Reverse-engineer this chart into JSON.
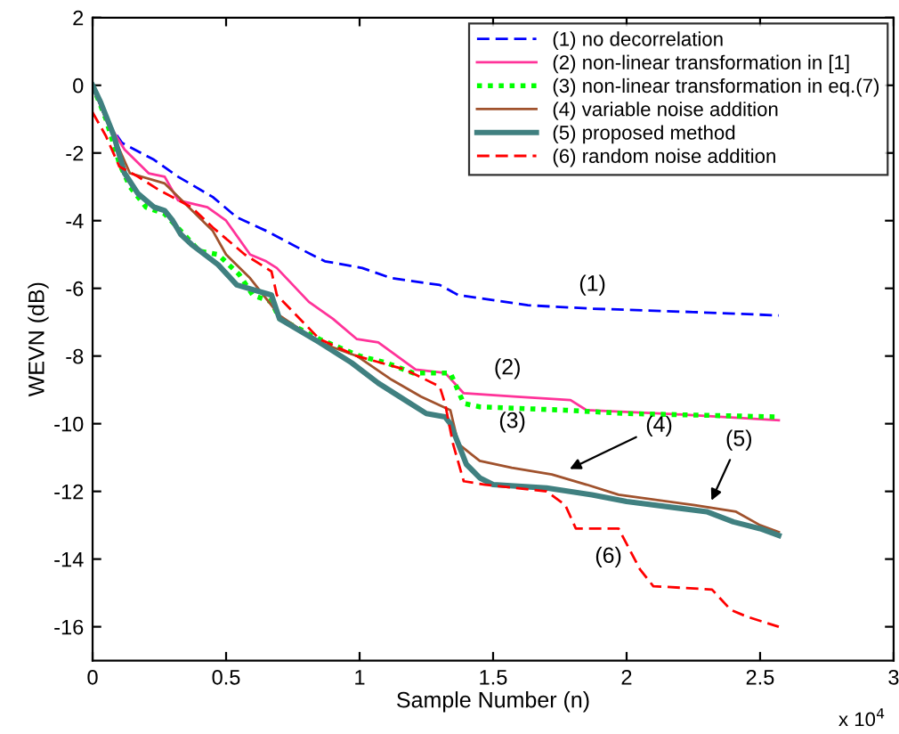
{
  "chart_data": {
    "type": "line",
    "xlabel": "Sample Number (n)",
    "ylabel": "WEVN (dB)",
    "xlim": [
      0,
      3
    ],
    "xticks": [
      0,
      0.5,
      1,
      1.5,
      2,
      2.5,
      3
    ],
    "ylim": [
      -17,
      2
    ],
    "yticks": [
      -16,
      -14,
      -12,
      -10,
      -8,
      -6,
      -4,
      -2,
      0,
      2
    ],
    "grid": false,
    "legend": "top right",
    "marker": "none",
    "series": [
      {
        "name": "(1) no decorrelation",
        "color": "#0000ff",
        "line_style": "dashed",
        "x": [
          0,
          0.05,
          0.11,
          0.23,
          0.32,
          0.45,
          0.54,
          0.65,
          0.77,
          0.87,
          1.01,
          1.12,
          1.3,
          1.37,
          1.63,
          1.87,
          2.25,
          2.57
        ],
        "values": [
          0,
          -1.0,
          -1.7,
          -2.2,
          -2.7,
          -3.3,
          -3.9,
          -4.3,
          -4.8,
          -5.2,
          -5.4,
          -5.7,
          -5.9,
          -6.2,
          -6.5,
          -6.6,
          -6.7,
          -6.8
        ]
      },
      {
        "name": "(2) non-linear transformation in [1]",
        "color": "#ff3399",
        "line_style": "solid",
        "x": [
          0,
          0.05,
          0.12,
          0.21,
          0.27,
          0.32,
          0.43,
          0.5,
          0.59,
          0.65,
          0.69,
          0.81,
          0.9,
          0.99,
          1.07,
          1.21,
          1.32,
          1.39,
          1.59,
          1.79,
          1.85,
          2.14,
          2.57
        ],
        "values": [
          0,
          -1.0,
          -1.9,
          -2.6,
          -2.7,
          -3.4,
          -3.6,
          -4.0,
          -5.0,
          -5.2,
          -5.4,
          -6.4,
          -6.9,
          -7.5,
          -7.6,
          -8.4,
          -8.5,
          -9.1,
          -9.2,
          -9.3,
          -9.6,
          -9.7,
          -9.9
        ]
      },
      {
        "name": "(3) non-linear transformation in eq.(7)",
        "color": "#00ff00",
        "line_style": "dotted",
        "x": [
          0,
          0.05,
          0.1,
          0.14,
          0.2,
          0.27,
          0.33,
          0.4,
          0.47,
          0.55,
          0.6,
          0.67,
          0.7,
          0.85,
          1.0,
          1.1,
          1.2,
          1.34,
          1.39,
          1.45,
          1.77,
          2.0,
          2.57
        ],
        "values": [
          0,
          -1.0,
          -2.3,
          -3.0,
          -3.6,
          -3.8,
          -4.3,
          -4.9,
          -5.0,
          -5.6,
          -6.2,
          -6.4,
          -6.9,
          -7.5,
          -8.0,
          -8.2,
          -8.5,
          -8.5,
          -9.4,
          -9.5,
          -9.6,
          -9.7,
          -9.8
        ]
      },
      {
        "name": "(4) variable noise addition",
        "color": "#a0522d",
        "line_style": "solid",
        "x": [
          0,
          0.05,
          0.14,
          0.27,
          0.45,
          0.5,
          0.59,
          0.7,
          0.85,
          0.99,
          1.12,
          1.23,
          1.34,
          1.37,
          1.45,
          1.57,
          1.72,
          1.85,
          1.97,
          2.25,
          2.41,
          2.5,
          2.57
        ],
        "values": [
          0,
          -1.0,
          -2.6,
          -2.9,
          -4.3,
          -5.0,
          -5.7,
          -6.8,
          -7.6,
          -8.0,
          -8.7,
          -9.2,
          -9.6,
          -10.6,
          -11.1,
          -11.3,
          -11.5,
          -11.8,
          -12.1,
          -12.4,
          -12.6,
          -13.0,
          -13.2
        ]
      },
      {
        "name": "(5) proposed method",
        "color": "#408080",
        "line_style": "solid",
        "x": [
          0,
          0.03,
          0.08,
          0.12,
          0.17,
          0.23,
          0.27,
          0.3,
          0.33,
          0.37,
          0.47,
          0.54,
          0.67,
          0.7,
          0.85,
          0.97,
          1.07,
          1.17,
          1.25,
          1.32,
          1.34,
          1.37,
          1.4,
          1.45,
          1.5,
          1.7,
          1.87,
          2.0,
          2.2,
          2.3,
          2.4,
          2.5,
          2.57
        ],
        "values": [
          0,
          -0.5,
          -1.5,
          -2.6,
          -3.2,
          -3.6,
          -3.7,
          -4.0,
          -4.4,
          -4.7,
          -5.3,
          -5.9,
          -6.2,
          -6.9,
          -7.6,
          -8.2,
          -8.8,
          -9.3,
          -9.7,
          -9.8,
          -10.0,
          -10.6,
          -11.2,
          -11.6,
          -11.8,
          -11.9,
          -12.1,
          -12.3,
          -12.5,
          -12.6,
          -12.9,
          -13.1,
          -13.3
        ]
      },
      {
        "name": "(6) random noise addition",
        "color": "#ff0000",
        "line_style": "dashed",
        "x": [
          0,
          0.05,
          0.1,
          0.17,
          0.25,
          0.37,
          0.45,
          0.57,
          0.67,
          0.69,
          0.85,
          0.99,
          1.17,
          1.3,
          1.32,
          1.35,
          1.39,
          1.47,
          1.7,
          1.77,
          1.81,
          1.97,
          2.05,
          2.1,
          2.32,
          2.39,
          2.45,
          2.57
        ],
        "values": [
          -0.8,
          -1.5,
          -2.4,
          -2.7,
          -3.1,
          -3.6,
          -4.2,
          -5.0,
          -5.5,
          -6.2,
          -7.5,
          -8.0,
          -8.4,
          -8.9,
          -9.4,
          -10.6,
          -11.7,
          -11.8,
          -12.0,
          -12.4,
          -13.1,
          -13.1,
          -14.3,
          -14.8,
          -14.9,
          -15.5,
          -15.7,
          -16.0
        ]
      }
    ],
    "annotations": [
      "(1)",
      "(2)",
      "(3)",
      {
        "text": "(4)",
        "x": 1.77,
        "y": -11.4
      },
      {
        "text": "(5)",
        "x": 2.31,
        "y": -12.4
      },
      "(6)",
      "x 10$^{4}$"
    ]
  }
}
